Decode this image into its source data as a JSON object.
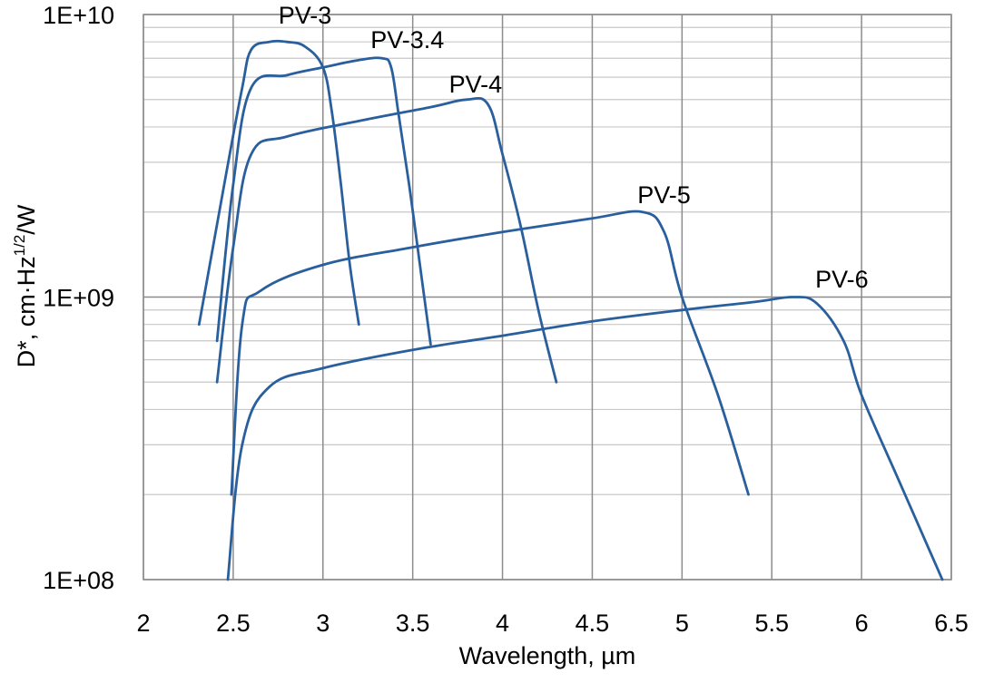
{
  "chart_data": {
    "type": "line",
    "title": "",
    "xlabel": "Wavelength, µm",
    "ylabel": {
      "prefix": "D*, cm·Hz",
      "superscript": "1/2",
      "suffix": "/W"
    },
    "x_scale": "linear",
    "y_scale": "log",
    "xlim": [
      2,
      6.5
    ],
    "ylim": [
      100000000,
      10000000000
    ],
    "xticks": [
      2,
      2.5,
      3,
      3.5,
      4,
      4.5,
      5,
      5.5,
      6,
      6.5
    ],
    "xtick_labels": [
      "2",
      "2.5",
      "3",
      "3.5",
      "4",
      "4.5",
      "5",
      "5.5",
      "6",
      "6.5"
    ],
    "yticks": [
      100000000,
      1000000000,
      10000000000
    ],
    "ytick_labels": [
      "1E+08",
      "1E+09",
      "1E+10"
    ],
    "grid": true,
    "legend": "none",
    "line_color": "#2A5F9E",
    "grid_major_color": "#8C8C8C",
    "grid_minor_color": "#C8C8C8",
    "series": [
      {
        "name": "PV-3",
        "label_at": [
          2.9,
          9300000000
        ],
        "points": [
          [
            2.31,
            800000000
          ],
          [
            2.45,
            2500000000
          ],
          [
            2.55,
            5500000000
          ],
          [
            2.6,
            7500000000
          ],
          [
            2.7,
            8000000000
          ],
          [
            2.8,
            8000000000
          ],
          [
            2.9,
            7700000000
          ],
          [
            3.0,
            6500000000
          ],
          [
            3.05,
            4500000000
          ],
          [
            3.1,
            2500000000
          ],
          [
            3.15,
            1300000000
          ],
          [
            3.2,
            800000000
          ]
        ]
      },
      {
        "name": "PV-3.4",
        "label_at": [
          3.47,
          7600000000
        ],
        "points": [
          [
            2.41,
            700000000
          ],
          [
            2.5,
            2500000000
          ],
          [
            2.6,
            5500000000
          ],
          [
            2.8,
            6100000000
          ],
          [
            3.0,
            6500000000
          ],
          [
            3.2,
            6900000000
          ],
          [
            3.33,
            7000000000
          ],
          [
            3.38,
            6500000000
          ],
          [
            3.42,
            4500000000
          ],
          [
            3.48,
            2500000000
          ],
          [
            3.54,
            1300000000
          ],
          [
            3.6,
            680000000
          ]
        ]
      },
      {
        "name": "PV-4",
        "label_at": [
          3.85,
          5300000000
        ],
        "points": [
          [
            2.41,
            500000000
          ],
          [
            2.5,
            1500000000
          ],
          [
            2.6,
            3200000000
          ],
          [
            2.8,
            3700000000
          ],
          [
            3.2,
            4200000000
          ],
          [
            3.6,
            4700000000
          ],
          [
            3.8,
            5000000000
          ],
          [
            3.92,
            4800000000
          ],
          [
            4.0,
            3200000000
          ],
          [
            4.1,
            1800000000
          ],
          [
            4.2,
            900000000
          ],
          [
            4.3,
            500000000
          ]
        ]
      },
      {
        "name": "PV-5",
        "label_at": [
          4.9,
          2150000000
        ],
        "points": [
          [
            2.49,
            200000000
          ],
          [
            2.55,
            800000000
          ],
          [
            2.65,
            1050000000
          ],
          [
            3.0,
            1300000000
          ],
          [
            3.5,
            1500000000
          ],
          [
            4.0,
            1700000000
          ],
          [
            4.5,
            1900000000
          ],
          [
            4.78,
            2000000000
          ],
          [
            4.9,
            1700000000
          ],
          [
            5.0,
            1000000000
          ],
          [
            5.2,
            450000000
          ],
          [
            5.37,
            200000000
          ]
        ]
      },
      {
        "name": "PV-6",
        "label_at": [
          5.89,
          1080000000
        ],
        "points": [
          [
            2.47,
            100000000
          ],
          [
            2.55,
            300000000
          ],
          [
            2.7,
            480000000
          ],
          [
            3.0,
            560000000
          ],
          [
            3.5,
            650000000
          ],
          [
            4.0,
            730000000
          ],
          [
            4.5,
            820000000
          ],
          [
            5.0,
            900000000
          ],
          [
            5.4,
            960000000
          ],
          [
            5.62,
            1000000000
          ],
          [
            5.75,
            950000000
          ],
          [
            5.9,
            700000000
          ],
          [
            6.0,
            450000000
          ],
          [
            6.2,
            230000000
          ],
          [
            6.45,
            100000000
          ]
        ]
      }
    ]
  }
}
